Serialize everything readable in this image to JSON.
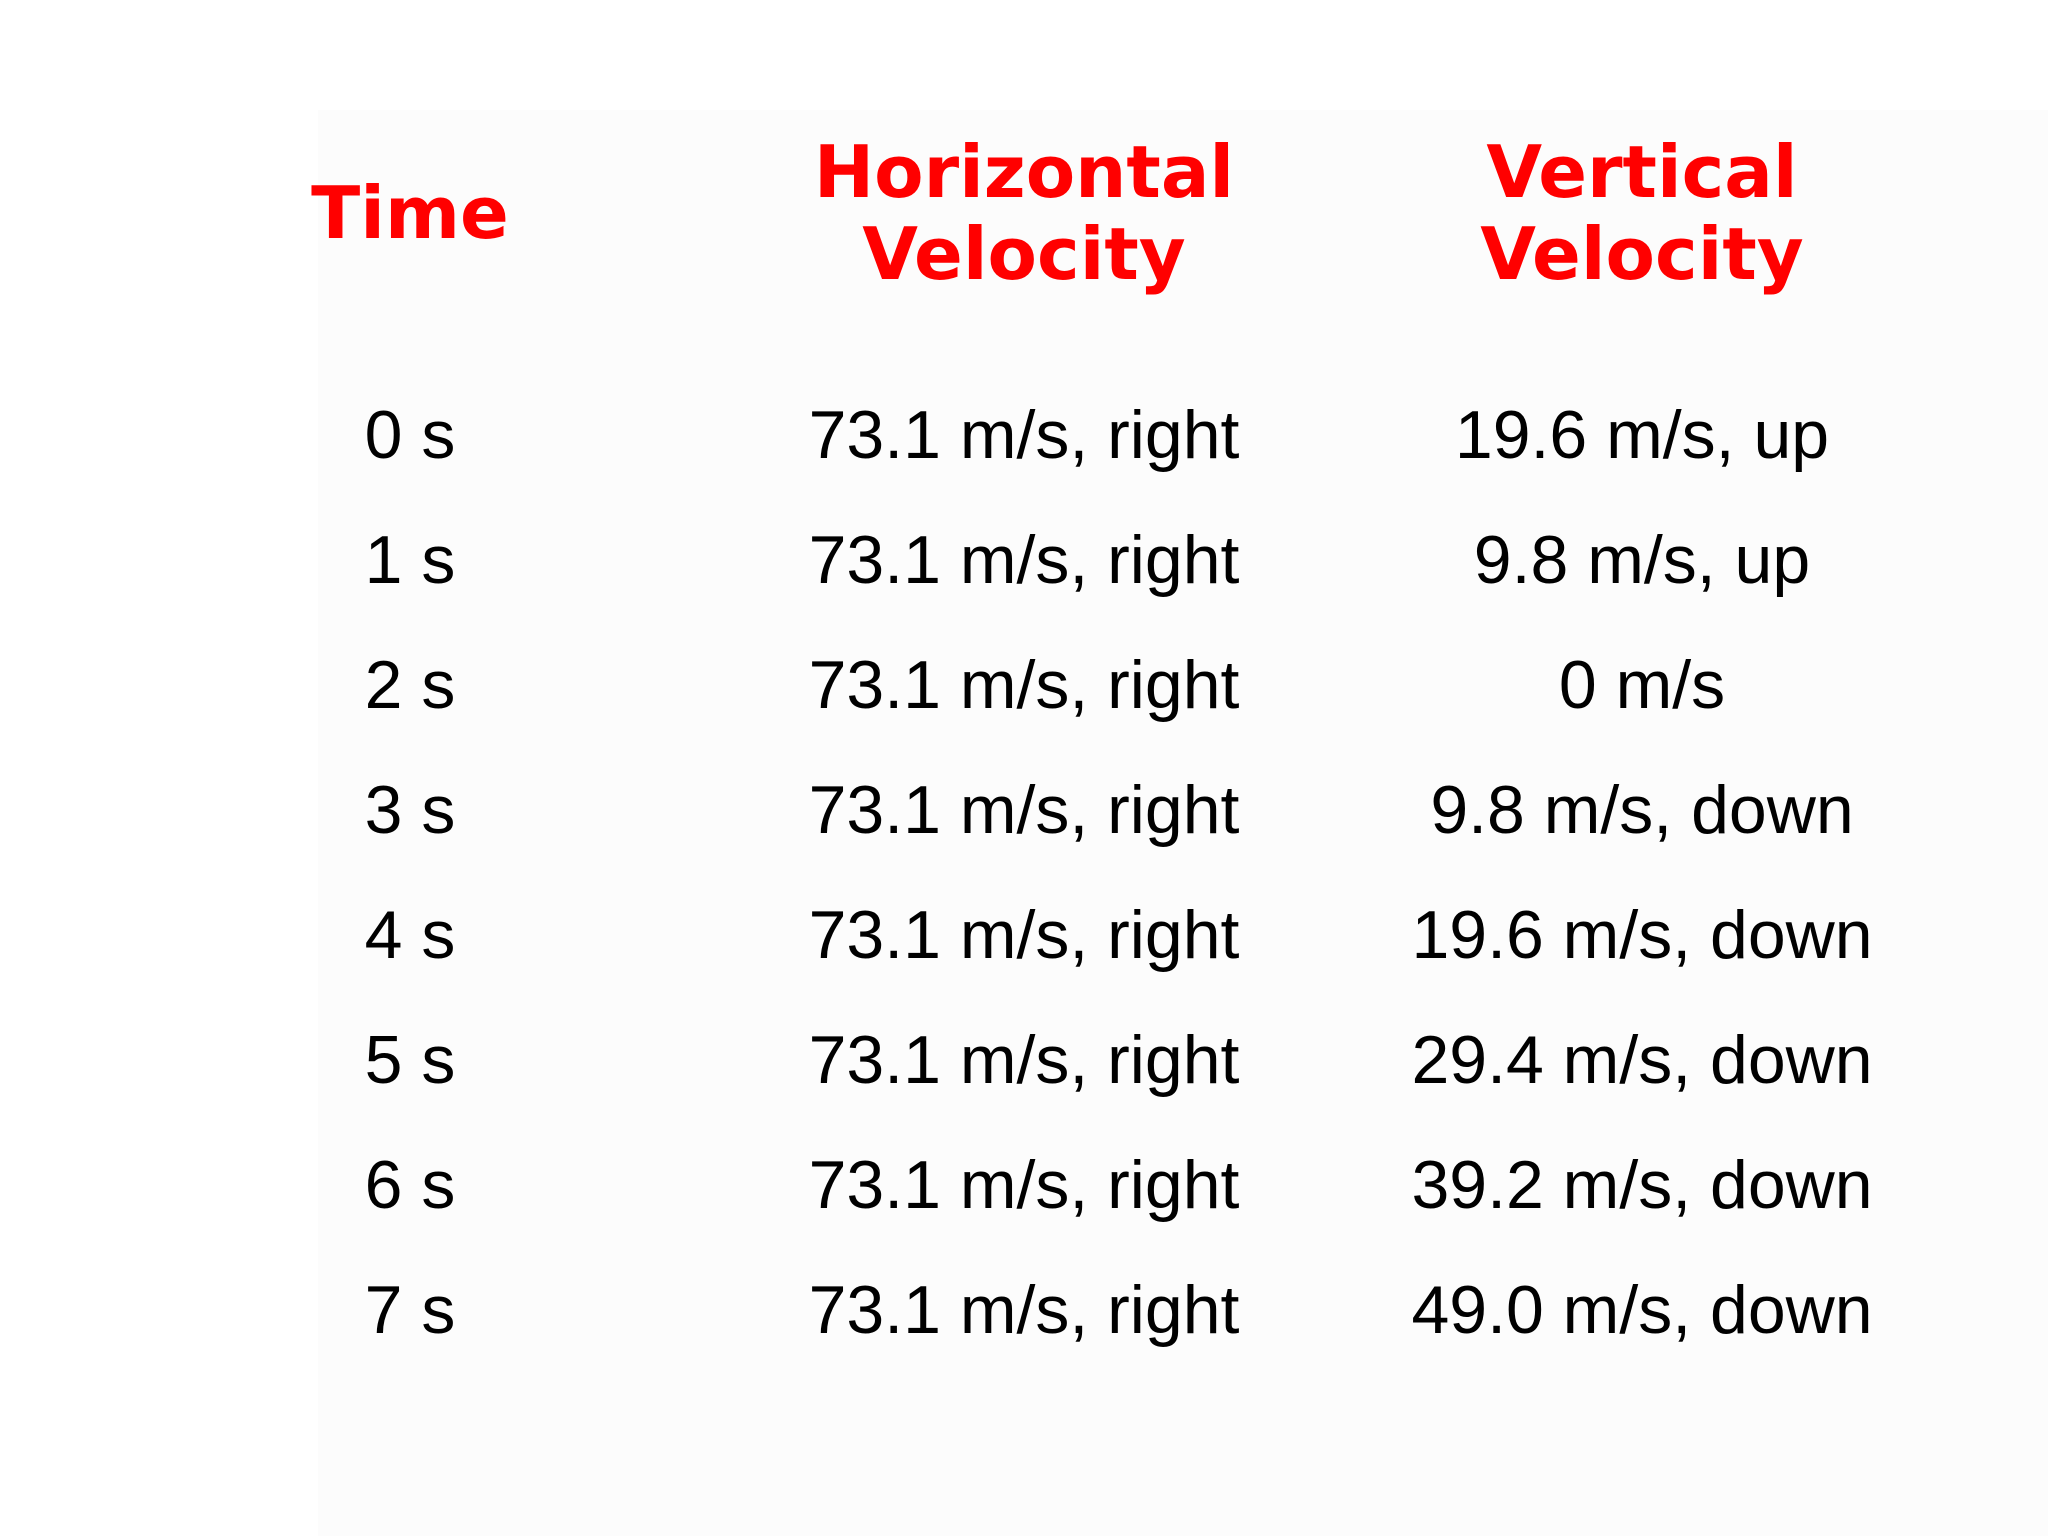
{
  "table": {
    "headers": {
      "time": [
        "Time"
      ],
      "horizontal": [
        "Horizontal",
        "Velocity"
      ],
      "vertical": [
        "Vertical",
        "Velocity"
      ]
    },
    "rows": [
      {
        "time": "0 s",
        "horizontal": "73.1 m/s, right",
        "vertical": "19.6 m/s, up"
      },
      {
        "time": "1 s",
        "horizontal": "73.1 m/s, right",
        "vertical": "9.8 m/s, up"
      },
      {
        "time": "2 s",
        "horizontal": "73.1 m/s, right",
        "vertical": "0 m/s"
      },
      {
        "time": "3 s",
        "horizontal": "73.1 m/s, right",
        "vertical": "9.8 m/s, down"
      },
      {
        "time": "4 s",
        "horizontal": "73.1 m/s, right",
        "vertical": "19.6 m/s, down"
      },
      {
        "time": "5 s",
        "horizontal": "73.1 m/s, right",
        "vertical": "29.4 m/s, down"
      },
      {
        "time": "6 s",
        "horizontal": "73.1 m/s, right",
        "vertical": "39.2 m/s, down"
      },
      {
        "time": "7 s",
        "horizontal": "73.1 m/s, right",
        "vertical": "49.0 m/s, down"
      }
    ]
  },
  "colors": {
    "header": "#ff0000",
    "text": "#000000",
    "background": "#ffffff"
  }
}
